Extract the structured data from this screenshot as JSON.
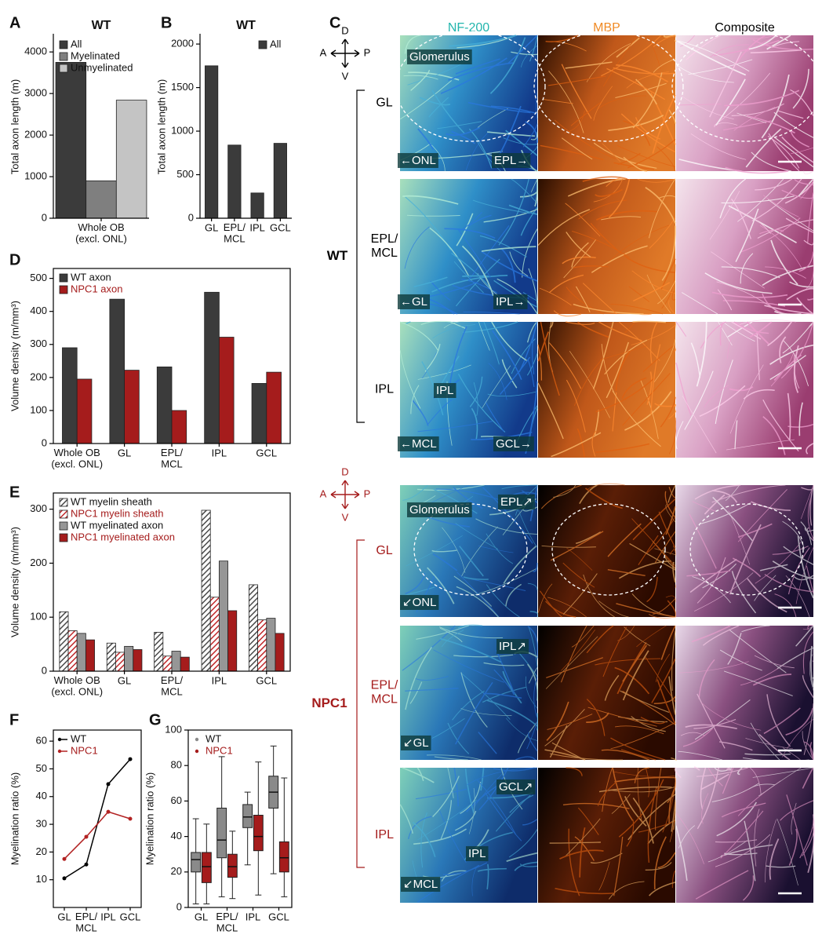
{
  "chart_data": [
    {
      "panel": "A",
      "type": "bar",
      "title": "WT",
      "categories": [
        "Whole OB\n(excl. ONL)"
      ],
      "ylabel": "Total axon length (m)",
      "ylim": [
        0,
        4400
      ],
      "yticks": [
        0,
        1000,
        2000,
        3000,
        4000
      ],
      "frame": "axes",
      "legend_loc": "upper left",
      "series": [
        {
          "name": "All",
          "color": "#3b3b3b",
          "values": [
            3750
          ]
        },
        {
          "name": "Myelinated",
          "color": "#7f7f7f",
          "values": [
            900
          ]
        },
        {
          "name": "Unmyelinated",
          "color": "#c4c4c4",
          "values": [
            2840
          ]
        }
      ]
    },
    {
      "panel": "B",
      "type": "bar",
      "title": "WT",
      "categories": [
        "GL",
        "EPL/\nMCL",
        "IPL",
        "GCL"
      ],
      "ylabel": "Total axon length (m)",
      "ylim": [
        0,
        2100
      ],
      "yticks": [
        0,
        500,
        1000,
        1500,
        2000
      ],
      "frame": "axes",
      "legend_loc": "upper right",
      "series": [
        {
          "name": "All",
          "color": "#3b3b3b",
          "values": [
            1750,
            840,
            290,
            860
          ]
        }
      ]
    },
    {
      "panel": "D",
      "type": "bar",
      "categories": [
        "Whole OB\n(excl. ONL)",
        "GL",
        "EPL/\nMCL",
        "IPL",
        "GCL"
      ],
      "ylabel": "Volume density (m/mm³)",
      "ylim": [
        0,
        530
      ],
      "yticks": [
        0,
        100,
        200,
        300,
        400,
        500
      ],
      "frame": "box",
      "legend_loc": "upper left",
      "series": [
        {
          "name": "WT axon",
          "color": "#3b3b3b",
          "values": [
            290,
            437,
            232,
            458,
            182
          ]
        },
        {
          "name": "NPC1 axon",
          "color": "#a51c1c",
          "text_color": "#a51c1c",
          "values": [
            195,
            222,
            100,
            322,
            216
          ]
        }
      ]
    },
    {
      "panel": "E",
      "type": "bar",
      "categories": [
        "Whole OB\n(excl. ONL)",
        "GL",
        "EPL/\nMCL",
        "IPL",
        "GCL"
      ],
      "ylabel": "Volume density (m/mm³)",
      "ylim": [
        0,
        330
      ],
      "yticks": [
        0,
        100,
        200,
        300
      ],
      "frame": "box",
      "legend_loc": "upper left",
      "series": [
        {
          "name": "WT myelin sheath",
          "color": "#4a4a4a",
          "hatch": true,
          "values": [
            110,
            52,
            72,
            298,
            160
          ]
        },
        {
          "name": "NPC1 myelin sheath",
          "color": "#c0282a",
          "hatch": true,
          "text_color": "#a51c1c",
          "values": [
            75,
            35,
            28,
            137,
            95
          ]
        },
        {
          "name": "WT myelinated axon",
          "color": "#969696",
          "values": [
            70,
            46,
            37,
            204,
            98
          ]
        },
        {
          "name": "NPC1 myelinated axon",
          "color": "#a51c1c",
          "text_color": "#a51c1c",
          "values": [
            58,
            40,
            26,
            112,
            70
          ]
        }
      ]
    },
    {
      "panel": "F",
      "type": "line",
      "categories": [
        "GL",
        "EPL/\nMCL",
        "IPL",
        "GCL"
      ],
      "ylabel": "Myelination ratio (%)",
      "ylim": [
        0,
        64
      ],
      "yticks": [
        10,
        20,
        30,
        40,
        50,
        60
      ],
      "frame": "box",
      "legend_loc": "upper left",
      "series": [
        {
          "name": "WT",
          "color": "#000000",
          "values": [
            10.5,
            15.5,
            44.5,
            53.5
          ]
        },
        {
          "name": "NPC1",
          "color": "#b22222",
          "text_color": "#a51c1c",
          "values": [
            17.5,
            25.5,
            34.5,
            32
          ]
        }
      ]
    },
    {
      "panel": "G",
      "type": "box",
      "categories": [
        "GL",
        "EPL/\nMCL",
        "IPL",
        "GCL"
      ],
      "ylabel": "Myelination ratio (%)",
      "ylim": [
        0,
        100
      ],
      "yticks": [
        0,
        20,
        40,
        60,
        80,
        100
      ],
      "frame": "box",
      "legend_loc": "upper left",
      "series": [
        {
          "name": "WT",
          "color": "#8a8a8a",
          "values": [
            [
              2,
              20,
              27,
              31,
              50
            ],
            [
              6,
              28,
              38,
              56,
              85
            ],
            [
              24,
              45,
              51,
              58,
              65
            ],
            [
              19,
              56,
              65,
              74,
              91
            ]
          ]
        },
        {
          "name": "NPC1",
          "color": "#a51c1c",
          "text_color": "#a51c1c",
          "values": [
            [
              2,
              14,
              23,
              31,
              47
            ],
            [
              5,
              17,
              23,
              30,
              43
            ],
            [
              7,
              32,
              40,
              52,
              82
            ],
            [
              6,
              20,
              28,
              37,
              73
            ]
          ]
        }
      ]
    }
  ],
  "panel_c": {
    "letter": "C",
    "columns": [
      {
        "name": "NF-200",
        "color": "#22b5ad"
      },
      {
        "name": "MBP",
        "color": "#f08a24"
      },
      {
        "name": "Composite",
        "color": "#000000"
      }
    ],
    "groups": [
      {
        "name": "WT",
        "color": "#000000",
        "compass": {
          "up": "D",
          "down": "V",
          "left": "A",
          "right": "P"
        },
        "rows": [
          {
            "label": "GL",
            "annotations": [
              "Glomerulus",
              "←ONL",
              "EPL→"
            ]
          },
          {
            "label": "EPL/\nMCL",
            "annotations": [
              "←GL",
              "IPL→"
            ]
          },
          {
            "label": "IPL",
            "annotations": [
              "IPL",
              "←MCL",
              "GCL→"
            ]
          }
        ]
      },
      {
        "name": "NPC1",
        "color": "#a51c1c",
        "compass": {
          "up": "D",
          "down": "V",
          "left": "A",
          "right": "P"
        },
        "rows": [
          {
            "label": "GL",
            "annotations": [
              "Glomerulus",
              "EPL↗",
              "↙ONL"
            ]
          },
          {
            "label": "EPL/\nMCL",
            "annotations": [
              "IPL↗",
              "↙GL"
            ]
          },
          {
            "label": "IPL",
            "annotations": [
              "GCL↗",
              "IPL",
              "↙MCL"
            ]
          }
        ]
      }
    ]
  }
}
